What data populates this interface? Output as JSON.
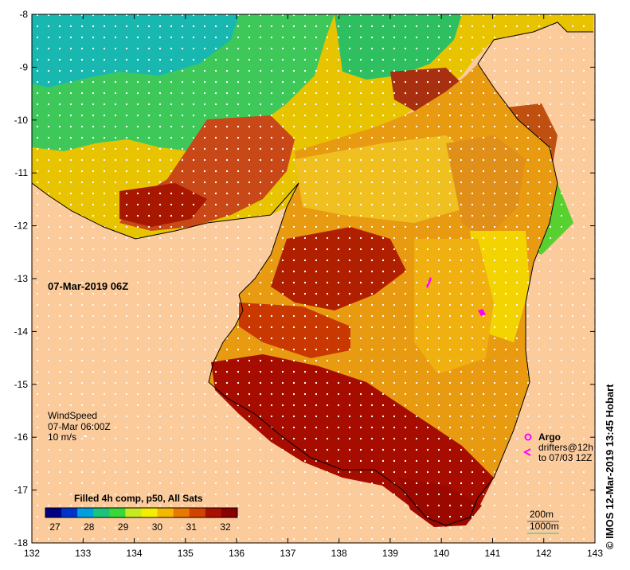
{
  "map": {
    "timestamp": "07-Mar-2019 06Z",
    "x_ticks": [
      "132",
      "133",
      "134",
      "135",
      "136",
      "137",
      "138",
      "139",
      "140",
      "141",
      "142",
      "143"
    ],
    "y_ticks": [
      "-8",
      "-9",
      "-10",
      "-11",
      "-12",
      "-13",
      "-14",
      "-15",
      "-16",
      "-17",
      "-18"
    ],
    "land_color": "#fccb9c",
    "sea_color": "#d97a10"
  },
  "wind_legend": {
    "title": "WindSpeed",
    "time": "07-Mar 06:00Z",
    "scale": "10 m/s"
  },
  "colorbar": {
    "title": "Filled 4h comp, p50, All Sats",
    "labels": [
      "27",
      "28",
      "29",
      "30",
      "31",
      "32"
    ],
    "colors": [
      "#000080",
      "#0033cc",
      "#00a0e0",
      "#1cc47a",
      "#38d838",
      "#c8e820",
      "#f5ee00",
      "#f5b800",
      "#e87800",
      "#d04400",
      "#a81000",
      "#880000"
    ]
  },
  "markers_legend": {
    "argo_label": "Argo",
    "drifters_label": "drifters@12h",
    "drifters_time": "to 07/03 12Z",
    "marker_color": "#ff00ff"
  },
  "contour_legend": {
    "contour_200": "200m",
    "contour_1000": "1000m"
  },
  "credit": "© IMOS 12-Mar-2019 13:45 Hobart"
}
